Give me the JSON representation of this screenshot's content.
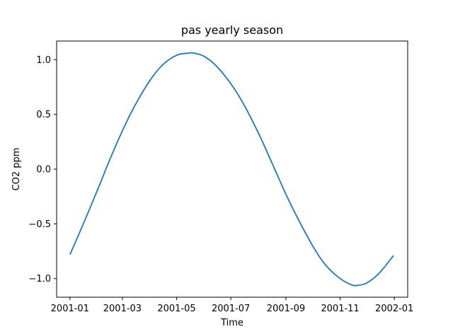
{
  "chart_data": {
    "type": "line",
    "title": "pas yearly season",
    "xlabel": "Time",
    "ylabel": "CO2 ppm",
    "xlim": [
      "2000-12-17",
      "2002-01-16"
    ],
    "ylim": [
      -1.17,
      1.17
    ],
    "grid": false,
    "line_color": "#1f77b4",
    "x_ticks": [
      {
        "value": "2001-01-01",
        "label": "2001-01"
      },
      {
        "value": "2001-03-01",
        "label": "2001-03"
      },
      {
        "value": "2001-05-01",
        "label": "2001-05"
      },
      {
        "value": "2001-07-01",
        "label": "2001-07"
      },
      {
        "value": "2001-09-01",
        "label": "2001-09"
      },
      {
        "value": "2001-11-01",
        "label": "2001-11"
      },
      {
        "value": "2002-01-01",
        "label": "2002-01"
      }
    ],
    "y_ticks": [
      {
        "value": 1.0,
        "label": "1.0"
      },
      {
        "value": 0.5,
        "label": "0.5"
      },
      {
        "value": 0.0,
        "label": "0.0"
      },
      {
        "value": -0.5,
        "label": "−0.5"
      },
      {
        "value": -1.0,
        "label": "−1.0"
      }
    ],
    "series": [
      {
        "x": [
          "2001-01-01",
          "2001-01-15",
          "2001-02-01",
          "2001-02-15",
          "2001-03-01",
          "2001-03-15",
          "2001-04-01",
          "2001-04-15",
          "2001-05-01",
          "2001-05-15",
          "2001-05-20",
          "2001-06-01",
          "2001-06-15",
          "2001-07-01",
          "2001-07-15",
          "2001-08-01",
          "2001-08-15",
          "2001-09-01",
          "2001-09-15",
          "2001-10-01",
          "2001-10-15",
          "2001-11-01",
          "2001-11-15",
          "2001-11-22",
          "2001-12-01",
          "2001-12-15",
          "2001-12-31"
        ],
        "y": [
          -0.78,
          -0.52,
          -0.19,
          0.09,
          0.35,
          0.58,
          0.81,
          0.95,
          1.04,
          1.06,
          1.06,
          1.03,
          0.94,
          0.78,
          0.6,
          0.33,
          0.08,
          -0.23,
          -0.46,
          -0.7,
          -0.87,
          -1.0,
          -1.06,
          -1.06,
          -1.04,
          -0.95,
          -0.79
        ]
      }
    ]
  }
}
